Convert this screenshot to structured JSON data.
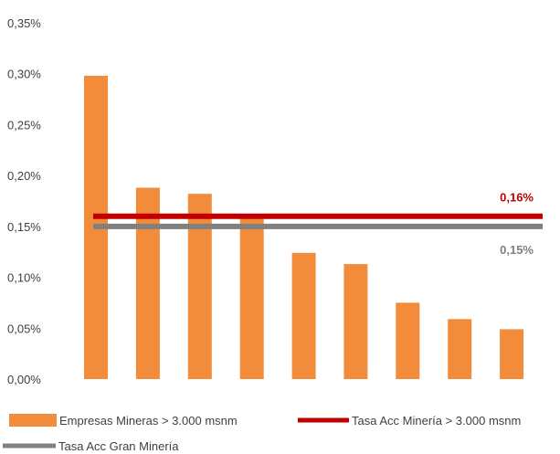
{
  "chart_data": {
    "type": "bar",
    "categories": [
      "",
      "",
      "",
      "",
      "",
      "",
      "",
      "",
      ""
    ],
    "series": [
      {
        "name": "Empresas Mineras > 3.000 msnm",
        "type": "bar",
        "color": "#F28C3A",
        "values": [
          0.298,
          0.188,
          0.182,
          0.162,
          0.124,
          0.113,
          0.075,
          0.059,
          0.049
        ]
      },
      {
        "name": "Tasa Acc Minería > 3.000 msnm",
        "type": "line",
        "color": "#C00000",
        "value": 0.16,
        "label": "0,16%"
      },
      {
        "name": "Tasa Acc Gran Minería",
        "type": "line",
        "color": "#808080",
        "value": 0.15,
        "label": "0,15%"
      }
    ],
    "y_ticks": [
      "0,00%",
      "0,05%",
      "0,10%",
      "0,15%",
      "0,20%",
      "0,25%",
      "0,30%",
      "0,35%"
    ],
    "ylim": [
      0,
      0.35
    ],
    "y_unit": "%",
    "grid": false,
    "legend_position": "bottom"
  }
}
